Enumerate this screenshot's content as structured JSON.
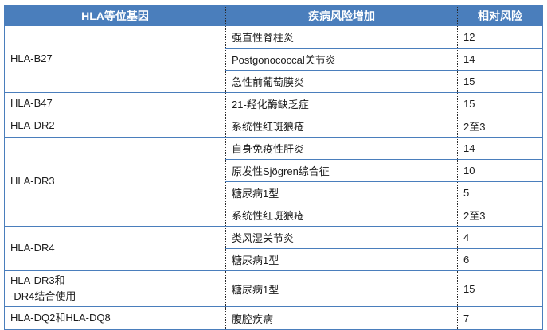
{
  "table": {
    "title": "HLA-disease-relative-risk-table",
    "columns": [
      "HLA等位基因",
      "疾病风险增加",
      "相对风险"
    ],
    "groups": [
      {
        "allele": "HLA-B27",
        "diseases": [
          {
            "name": "强直性脊柱炎",
            "risk": "12"
          },
          {
            "name": "Postgonococcal关节炎",
            "risk": "14"
          },
          {
            "name": "急性前葡萄膜炎",
            "risk": "15"
          }
        ]
      },
      {
        "allele": "HLA-B47",
        "diseases": [
          {
            "name": "21-羟化酶缺乏症",
            "risk": "15"
          }
        ]
      },
      {
        "allele": "HLA-DR2",
        "diseases": [
          {
            "name": "系统性红斑狼疮",
            "risk": "2至3"
          }
        ]
      },
      {
        "allele": "HLA-DR3",
        "diseases": [
          {
            "name": "自身免疫性肝炎",
            "risk": "14"
          },
          {
            "name": "原发性Sjögren综合征",
            "risk": "10"
          },
          {
            "name": "糖尿病1型",
            "risk": "5"
          },
          {
            "name": "系统性红斑狼疮",
            "risk": "2至3"
          }
        ]
      },
      {
        "allele": "HLA-DR4",
        "diseases": [
          {
            "name": "类风湿关节炎",
            "risk": "4"
          },
          {
            "name": "糖尿病1型",
            "risk": "6"
          }
        ]
      },
      {
        "allele": "HLA-DR3和\n-DR4结合使用",
        "tall": true,
        "diseases": [
          {
            "name": "糖尿病1型",
            "risk": "15"
          }
        ]
      },
      {
        "allele": "HLA-DQ2和HLA-DQ8",
        "last": true,
        "diseases": [
          {
            "name": "腹腔疾病",
            "risk": "7"
          }
        ]
      }
    ],
    "colors": {
      "header_bg": "#4a7ebc",
      "header_text": "#ffffff",
      "row_border": "#4a7ebc",
      "column_divider": "#2b2b2b",
      "body_text": "#1c1c1c"
    }
  }
}
